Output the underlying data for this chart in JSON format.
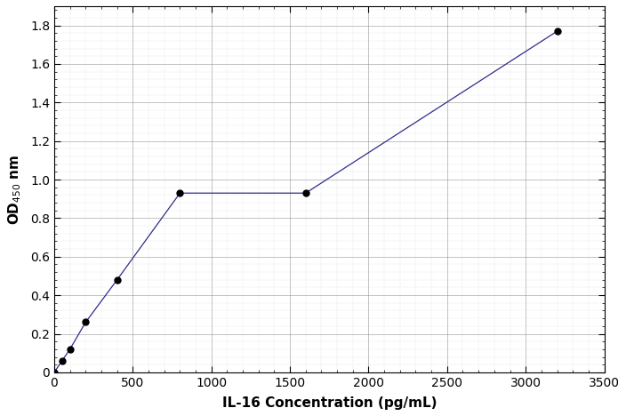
{
  "x": [
    0,
    50,
    100,
    200,
    400,
    800,
    1600,
    3200
  ],
  "y": [
    0.0,
    0.06,
    0.12,
    0.26,
    0.48,
    0.93,
    0.93,
    1.77
  ],
  "x_line": [
    0,
    50,
    100,
    200,
    400,
    800,
    1600,
    3200
  ],
  "y_line": [
    0.0,
    0.06,
    0.12,
    0.26,
    0.48,
    0.93,
    0.93,
    1.77
  ],
  "xlabel": "IL-16 Concentration (pg/mL)",
  "xlim": [
    0,
    3500
  ],
  "ylim": [
    0,
    1.9
  ],
  "xticks": [
    0,
    500,
    1000,
    1500,
    2000,
    2500,
    3000,
    3500
  ],
  "yticks": [
    0.0,
    0.2,
    0.4,
    0.6,
    0.8,
    1.0,
    1.2,
    1.4,
    1.6,
    1.8
  ],
  "line_color": "#2e2e8b",
  "marker_color": "#000000",
  "background_color": "#ffffff",
  "major_grid_color": "#888888",
  "minor_grid_color": "#aaaaaa",
  "marker_size": 5,
  "line_width": 0.9,
  "xlabel_fontsize": 11,
  "ylabel_fontsize": 11,
  "tick_labelsize": 10
}
